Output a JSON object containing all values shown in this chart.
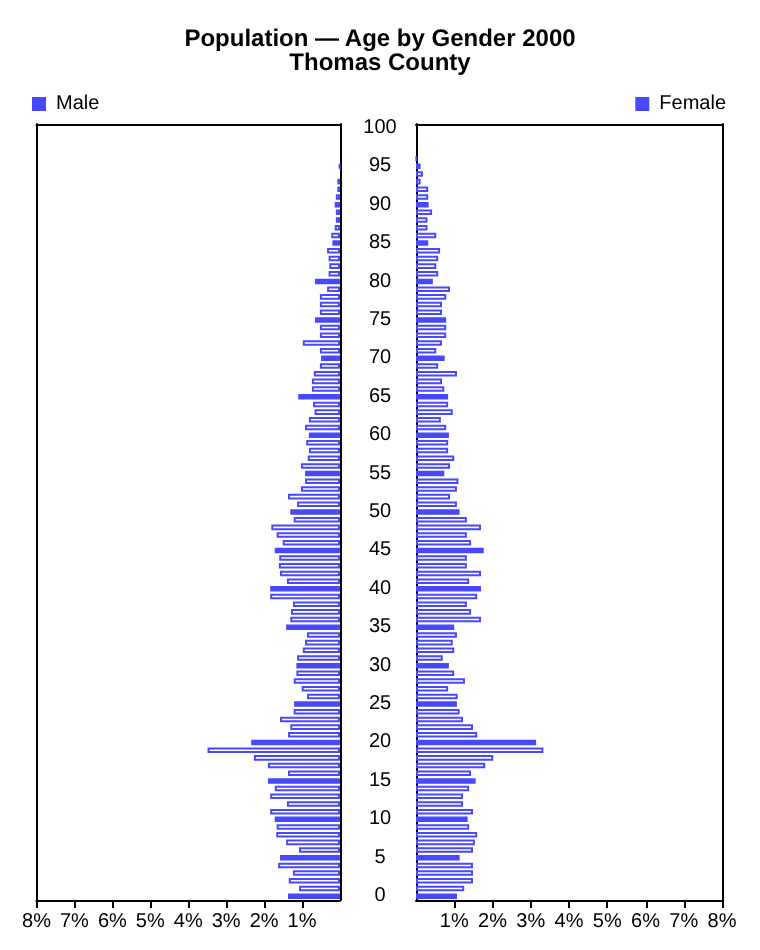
{
  "chart_data": [
    {
      "type": "bar",
      "orientation": "horizontal",
      "title": "Population — Age by Gender 2000",
      "subtitle": "Thomas County",
      "tick_labels": "x",
      "categories": [
        "100",
        null,
        null,
        null,
        null,
        "95",
        null,
        null,
        null,
        null,
        "90",
        null,
        null,
        null,
        null,
        "85",
        null,
        null,
        null,
        null,
        "80",
        null,
        null,
        null,
        null,
        "75",
        null,
        null,
        null,
        null,
        "70",
        null,
        null,
        null,
        null,
        "65",
        null,
        null,
        null,
        null,
        "60",
        null,
        null,
        null,
        null,
        "55",
        null,
        null,
        null,
        null,
        "50",
        null,
        null,
        null,
        null,
        "45",
        null,
        null,
        null,
        null,
        "40",
        null,
        null,
        null,
        null,
        "35",
        null,
        null,
        null,
        null,
        "30",
        null,
        null,
        null,
        null,
        "25",
        null,
        null,
        null,
        null,
        "20",
        null,
        null,
        null,
        null,
        "15",
        null,
        null,
        null,
        null,
        "10",
        null,
        null,
        null,
        null,
        "5",
        null,
        null,
        null,
        null,
        "0"
      ],
      "series": [
        {
          "name": "Male",
          "color": "#4848ff",
          "values": [
            0,
            0,
            0,
            0,
            null,
            0.02,
            null,
            0.07,
            0.07,
            0.11,
            0.14,
            0.11,
            0.11,
            0.14,
            0.23,
            0.2,
            0.34,
            0.3,
            0.28,
            0.3,
            0.66,
            0.34,
            0.53,
            0.53,
            0.53,
            0.66,
            0.53,
            0.53,
            0.98,
            0.53,
            0.5,
            0.53,
            0.69,
            0.74,
            0.74,
            1.1,
            0.71,
            0.67,
            0.82,
            0.92,
            0.82,
            0.89,
            0.82,
            0.85,
            1.03,
            0.92,
            0.92,
            1.03,
            1.37,
            1.13,
            1.31,
            1.22,
            1.81,
            1.67,
            1.51,
            1.72,
            1.6,
            1.61,
            1.58,
            1.4,
            1.84,
            1.84,
            1.24,
            1.29,
            1.31,
            1.42,
            0.87,
            0.92,
            0.98,
            1.13,
            1.15,
            1.15,
            1.22,
            1.01,
            0.87,
            1.21,
            1.22,
            1.58,
            1.31,
            1.37,
            2.34,
            3.49,
            2.27,
            1.9,
            1.37,
            1.9,
            1.72,
            1.84,
            1.4,
            1.84,
            1.72,
            1.67,
            1.68,
            1.42,
            1.08,
            1.58,
            1.63,
            1.24,
            1.35,
            1.08,
            1.37
          ],
          "colors": [
            "#4848ff",
            "#ffffff",
            "#ffffff",
            "#ffffff",
            "#4848ff",
            "#4848ff",
            "#4848ff",
            "#ffffff",
            "#ffffff",
            "#ffffff",
            "#4848ff",
            "#ffffff",
            "#ffffff",
            "#ffffff",
            "#ffffff",
            "#4848ff",
            "#ffffff",
            "#ffffff",
            "#ffffff",
            "#ffffff",
            "#4848ff",
            "#ffffff",
            "#ffffff",
            "#ffffff",
            "#ffffff",
            "#4848ff",
            "#ffffff",
            "#ffffff",
            "#ffffff",
            "#ffffff",
            "#4848ff",
            "#ffffff",
            "#ffffff",
            "#ffffff",
            "#ffffff",
            "#4848ff",
            "#ffffff",
            "#ffffff",
            "#ffffff",
            "#ffffff",
            "#4848ff",
            "#ffffff",
            "#ffffff",
            "#ffffff",
            "#ffffff",
            "#4848ff",
            "#ffffff",
            "#ffffff",
            "#ffffff",
            "#ffffff",
            "#4848ff",
            "#ffffff",
            "#ffffff",
            "#ffffff",
            "#ffffff",
            "#4848ff",
            "#ffffff",
            "#ffffff",
            "#ffffff",
            "#ffffff",
            "#4848ff",
            "#ffffff",
            "#ffffff",
            "#ffffff",
            "#ffffff",
            "#4848ff",
            "#ffffff",
            "#ffffff",
            "#ffffff",
            "#ffffff",
            "#4848ff",
            "#ffffff",
            "#ffffff",
            "#ffffff",
            "#ffffff",
            "#4848ff",
            "#ffffff",
            "#ffffff",
            "#ffffff",
            "#ffffff",
            "#4848ff",
            "#ffffff",
            "#ffffff",
            "#ffffff",
            "#ffffff",
            "#4848ff",
            "#ffffff",
            "#ffffff",
            "#ffffff",
            "#ffffff",
            "#4848ff",
            "#ffffff",
            "#ffffff",
            "#ffffff",
            "#ffffff",
            "#4848ff",
            "#ffffff",
            "#ffffff",
            "#ffffff",
            "#ffffff",
            "#4848ff"
          ]
        }
      ],
      "xlim": [
        8,
        0
      ],
      "xticks": [
        {
          "value": 8,
          "label": "8%"
        },
        {
          "value": 7,
          "label": "7%"
        },
        {
          "value": 6,
          "label": "6%"
        },
        {
          "value": 5,
          "label": "5%"
        },
        {
          "value": 4,
          "label": "4%"
        },
        {
          "value": 3,
          "label": "3%"
        },
        {
          "value": 2,
          "label": "2%"
        },
        {
          "value": 1,
          "label": "1%"
        }
      ],
      "grid": false,
      "legend": "top left"
    },
    {
      "type": "bar",
      "orientation": "horizontal",
      "categories": [
        "100",
        null,
        null,
        null,
        null,
        "95",
        null,
        null,
        null,
        null,
        "90",
        null,
        null,
        null,
        null,
        "85",
        null,
        null,
        null,
        null,
        "80",
        null,
        null,
        null,
        null,
        "75",
        null,
        null,
        null,
        null,
        "70",
        null,
        null,
        null,
        null,
        "65",
        null,
        null,
        null,
        null,
        "60",
        null,
        null,
        null,
        null,
        "55",
        null,
        null,
        null,
        null,
        "50",
        null,
        null,
        null,
        null,
        "45",
        null,
        null,
        null,
        null,
        "40",
        null,
        null,
        null,
        null,
        "35",
        null,
        null,
        null,
        null,
        "30",
        null,
        null,
        null,
        null,
        "25",
        null,
        null,
        null,
        null,
        "20",
        null,
        null,
        null,
        null,
        "15",
        null,
        null,
        null,
        null,
        "10",
        null,
        null,
        null,
        null,
        "5",
        null,
        null,
        null,
        null,
        "0"
      ],
      "series": [
        {
          "name": "Female",
          "color": "#4848ff",
          "values": [
            0,
            0,
            0,
            0,
            0.02,
            0.12,
            0.18,
            0.12,
            0.32,
            0.32,
            0.33,
            0.42,
            0.3,
            0.3,
            0.53,
            0.32,
            0.63,
            0.58,
            0.53,
            0.58,
            0.44,
            0.89,
            0.79,
            0.68,
            0.68,
            0.79,
            0.79,
            0.79,
            0.68,
            0.53,
            0.75,
            0.58,
            1.07,
            0.68,
            0.74,
            0.84,
            0.84,
            0.96,
            0.65,
            0.79,
            0.86,
            0.84,
            0.84,
            1.0,
            0.89,
            0.74,
            1.11,
            1.07,
            0.89,
            1.07,
            1.14,
            1.33,
            1.7,
            1.33,
            1.44,
            1.77,
            1.33,
            1.33,
            1.7,
            1.39,
            1.7,
            1.6,
            1.33,
            1.44,
            1.7,
            1.0,
            1.07,
            0.96,
            1.0,
            0.7,
            0.86,
            1.0,
            1.28,
            0.84,
            1.09,
            1.07,
            1.14,
            1.23,
            1.49,
            1.6,
            3.14,
            3.33,
            2.02,
            1.81,
            1.44,
            1.56,
            1.39,
            1.23,
            1.23,
            1.49,
            1.35,
            1.39,
            1.6,
            1.54,
            1.49,
            1.14,
            1.49,
            1.49,
            1.49,
            1.26,
            1.07
          ],
          "colors": [
            "#4848ff",
            "#ffffff",
            "#ffffff",
            "#ffffff",
            "#4848ff",
            "#4848ff",
            "#ffffff",
            "#ffffff",
            "#ffffff",
            "#ffffff",
            "#4848ff",
            "#ffffff",
            "#ffffff",
            "#ffffff",
            "#ffffff",
            "#4848ff",
            "#ffffff",
            "#ffffff",
            "#ffffff",
            "#ffffff",
            "#4848ff",
            "#ffffff",
            "#ffffff",
            "#ffffff",
            "#ffffff",
            "#4848ff",
            "#ffffff",
            "#ffffff",
            "#ffffff",
            "#ffffff",
            "#4848ff",
            "#ffffff",
            "#ffffff",
            "#ffffff",
            "#ffffff",
            "#4848ff",
            "#ffffff",
            "#ffffff",
            "#ffffff",
            "#ffffff",
            "#4848ff",
            "#ffffff",
            "#ffffff",
            "#ffffff",
            "#ffffff",
            "#4848ff",
            "#ffffff",
            "#ffffff",
            "#ffffff",
            "#ffffff",
            "#4848ff",
            "#ffffff",
            "#ffffff",
            "#ffffff",
            "#ffffff",
            "#4848ff",
            "#ffffff",
            "#ffffff",
            "#ffffff",
            "#ffffff",
            "#4848ff",
            "#ffffff",
            "#ffffff",
            "#ffffff",
            "#ffffff",
            "#4848ff",
            "#ffffff",
            "#ffffff",
            "#ffffff",
            "#ffffff",
            "#4848ff",
            "#ffffff",
            "#ffffff",
            "#ffffff",
            "#ffffff",
            "#4848ff",
            "#ffffff",
            "#ffffff",
            "#ffffff",
            "#ffffff",
            "#4848ff",
            "#ffffff",
            "#ffffff",
            "#ffffff",
            "#ffffff",
            "#4848ff",
            "#ffffff",
            "#ffffff",
            "#ffffff",
            "#ffffff",
            "#4848ff",
            "#ffffff",
            "#ffffff",
            "#ffffff",
            "#ffffff",
            "#4848ff",
            "#ffffff",
            "#ffffff",
            "#ffffff",
            "#ffffff",
            "#4848ff"
          ]
        }
      ],
      "xlim": [
        0,
        8
      ],
      "xticks": [
        {
          "value": 1,
          "label": "1%"
        },
        {
          "value": 2,
          "label": "2%"
        },
        {
          "value": 3,
          "label": "3%"
        },
        {
          "value": 4,
          "label": "4%"
        },
        {
          "value": 5,
          "label": "5%"
        },
        {
          "value": 6,
          "label": "6%"
        },
        {
          "value": 7,
          "label": "7%"
        },
        {
          "value": 8,
          "label": "8%"
        }
      ],
      "grid": false,
      "legend": "top right"
    }
  ]
}
